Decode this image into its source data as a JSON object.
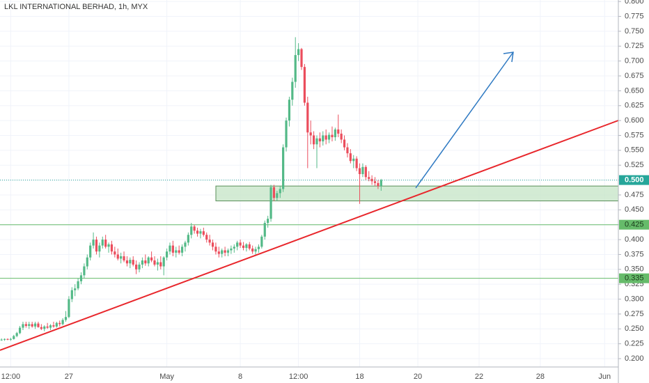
{
  "chart_data": {
    "type": "candlestick",
    "title": "LKL INTERNATIONAL BERHAD, 1h, MYX",
    "ylim": [
      0.186,
      0.8025
    ],
    "yticks": [
      {
        "value": 0.2,
        "label": "0.200"
      },
      {
        "value": 0.225,
        "label": "0.225"
      },
      {
        "value": 0.25,
        "label": "0.250"
      },
      {
        "value": 0.275,
        "label": "0.275"
      },
      {
        "value": 0.3,
        "label": "0.300"
      },
      {
        "value": 0.325,
        "label": "0.325"
      },
      {
        "value": 0.35,
        "label": "0.350"
      },
      {
        "value": 0.375,
        "label": "0.375"
      },
      {
        "value": 0.4,
        "label": "0.400"
      },
      {
        "value": 0.425,
        "label": "0.425"
      },
      {
        "value": 0.45,
        "label": "0.450"
      },
      {
        "value": 0.475,
        "label": "0.475"
      },
      {
        "value": 0.5,
        "label": "0.500"
      },
      {
        "value": 0.525,
        "label": "0.525"
      },
      {
        "value": 0.55,
        "label": "0.550"
      },
      {
        "value": 0.575,
        "label": "0.575"
      },
      {
        "value": 0.6,
        "label": "0.600"
      },
      {
        "value": 0.625,
        "label": "0.625"
      },
      {
        "value": 0.65,
        "label": "0.650"
      },
      {
        "value": 0.675,
        "label": "0.675"
      },
      {
        "value": 0.7,
        "label": "0.700"
      },
      {
        "value": 0.725,
        "label": "0.725"
      },
      {
        "value": 0.75,
        "label": "0.750"
      },
      {
        "value": 0.775,
        "label": "0.775"
      },
      {
        "value": 0.8,
        "label": "0.800"
      }
    ],
    "grid": true,
    "categories": [
      null,
      null,
      null,
      "12:00",
      null,
      null,
      null,
      null,
      null,
      null,
      null,
      null,
      null,
      null,
      null,
      null,
      null,
      null,
      null,
      null,
      null,
      null,
      "27",
      null,
      null,
      null,
      null,
      null,
      null,
      null,
      null,
      null,
      null,
      null,
      null,
      null,
      null,
      null,
      null,
      null,
      null,
      null,
      null,
      null,
      null,
      null,
      null,
      null,
      null,
      null,
      null,
      null,
      null,
      null,
      "May",
      null,
      null,
      null,
      null,
      null,
      null,
      null,
      null,
      null,
      null,
      null,
      null,
      null,
      null,
      null,
      null,
      null,
      null,
      null,
      null,
      null,
      null,
      null,
      "8",
      null,
      null,
      null,
      null,
      null,
      null,
      null,
      null,
      null,
      null,
      null,
      null,
      null,
      null,
      null,
      null,
      null,
      null,
      "12:00",
      null,
      null,
      null,
      null,
      null,
      null,
      null,
      null,
      null,
      null,
      null,
      null,
      null,
      null,
      null,
      null,
      null,
      null,
      null,
      "18",
      null,
      null,
      null,
      null,
      null,
      null,
      null,
      null,
      null,
      null,
      null,
      null,
      null,
      null,
      null,
      null,
      null,
      null,
      "20",
      null,
      null,
      null,
      null,
      null,
      null,
      null,
      null,
      null,
      null,
      null,
      null,
      null,
      null,
      null,
      null,
      null,
      null,
      null,
      "22",
      null,
      null,
      null,
      null,
      null,
      null,
      null,
      null,
      null,
      null,
      null,
      null,
      null,
      null,
      null,
      null,
      null,
      null,
      null,
      "28",
      null,
      null,
      null,
      null,
      null,
      null,
      null,
      null,
      null,
      null,
      null,
      null,
      null,
      null,
      null,
      null,
      null,
      null,
      null,
      null,
      "Jun",
      null,
      null,
      null,
      null
    ],
    "series": [
      {
        "up_color": "#53b987",
        "down_color": "#eb4d5c",
        "open": [
          0.232,
          0.232,
          0.233,
          0.232,
          0.233,
          0.238,
          0.243,
          0.252,
          0.258,
          0.255,
          0.258,
          0.254,
          0.259,
          0.253,
          0.25,
          0.254,
          0.252,
          0.256,
          0.254,
          0.26,
          0.258,
          0.265,
          0.27,
          0.3,
          0.315,
          0.318,
          0.33,
          0.34,
          0.355,
          0.37,
          0.39,
          0.4,
          0.38,
          0.39,
          0.4,
          0.388,
          0.392,
          0.38,
          0.375,
          0.368,
          0.372,
          0.365,
          0.36,
          0.366,
          0.358,
          0.35,
          0.358,
          0.365,
          0.36,
          0.37,
          0.365,
          0.358,
          0.362,
          0.355,
          0.37,
          0.38,
          0.39,
          0.378,
          0.382,
          0.378,
          0.388,
          0.395,
          0.408,
          0.422,
          0.415,
          0.41,
          0.414,
          0.408,
          0.4,
          0.395,
          0.388,
          0.38,
          0.376,
          0.382,
          0.378,
          0.382,
          0.385,
          0.388,
          0.395,
          0.39,
          0.386,
          0.392,
          0.385,
          0.38,
          0.384,
          0.388,
          0.405,
          0.428,
          0.435,
          0.488,
          0.47,
          0.478,
          0.485,
          0.555,
          0.6,
          0.635,
          0.665,
          0.71,
          0.72,
          0.69,
          0.63,
          0.58,
          0.575,
          0.56,
          0.57,
          0.565,
          0.575,
          0.568,
          0.576,
          0.572,
          0.585,
          0.578,
          0.568,
          0.555,
          0.545,
          0.532,
          0.536,
          0.52,
          0.51,
          0.522,
          0.505,
          0.502,
          0.498,
          0.495,
          0.49,
          null,
          null,
          null,
          null,
          null,
          null,
          null,
          null,
          null,
          null,
          null,
          null,
          null,
          null,
          null,
          null,
          null,
          null,
          null,
          null,
          null,
          null,
          null,
          null,
          null,
          null,
          null,
          null,
          null,
          null,
          null,
          null,
          null,
          null,
          null,
          null,
          null,
          null,
          null,
          null,
          null,
          null,
          null,
          null,
          null,
          null,
          null,
          null,
          null,
          null,
          null,
          null,
          null,
          null,
          null,
          null,
          null,
          null,
          null,
          null,
          null,
          null,
          null,
          null,
          null,
          null,
          null,
          null,
          null,
          null,
          null,
          null,
          null,
          null,
          null,
          null,
          null
        ],
        "high": [
          0.234,
          0.234,
          0.234,
          0.235,
          0.24,
          0.245,
          0.255,
          0.262,
          0.262,
          0.262,
          0.262,
          0.262,
          0.262,
          0.258,
          0.256,
          0.26,
          0.258,
          0.262,
          0.262,
          0.264,
          0.268,
          0.28,
          0.305,
          0.32,
          0.325,
          0.335,
          0.345,
          0.36,
          0.375,
          0.395,
          0.412,
          0.405,
          0.395,
          0.405,
          0.408,
          0.395,
          0.398,
          0.388,
          0.385,
          0.378,
          0.38,
          0.372,
          0.37,
          0.372,
          0.365,
          0.362,
          0.37,
          0.375,
          0.372,
          0.38,
          0.372,
          0.368,
          0.372,
          0.372,
          0.385,
          0.395,
          0.398,
          0.388,
          0.39,
          0.392,
          0.398,
          0.412,
          0.428,
          0.425,
          0.42,
          0.418,
          0.42,
          0.412,
          0.408,
          0.4,
          0.395,
          0.388,
          0.385,
          0.388,
          0.385,
          0.39,
          0.392,
          0.398,
          0.4,
          0.396,
          0.394,
          0.396,
          0.39,
          0.388,
          0.392,
          0.408,
          0.432,
          0.44,
          0.492,
          0.492,
          0.482,
          0.49,
          0.56,
          0.605,
          0.64,
          0.672,
          0.74,
          0.73,
          0.722,
          0.695,
          0.64,
          0.6,
          0.582,
          0.575,
          0.58,
          0.582,
          0.585,
          0.58,
          0.59,
          0.588,
          0.61,
          0.585,
          0.575,
          0.562,
          0.552,
          0.542,
          0.54,
          0.528,
          0.528,
          0.525,
          0.515,
          0.508,
          0.505,
          0.5,
          0.502,
          null,
          null,
          null,
          null,
          null,
          null,
          null,
          null,
          null,
          null,
          null,
          null,
          null,
          null,
          null,
          null,
          null,
          null,
          null,
          null,
          null,
          null,
          null,
          null,
          null,
          null,
          null,
          null,
          null,
          null,
          null,
          null,
          null,
          null,
          null,
          null,
          null,
          null,
          null,
          null,
          null,
          null,
          null,
          null,
          null,
          null,
          null,
          null,
          null,
          null,
          null,
          null,
          null,
          null,
          null,
          null,
          null,
          null,
          null,
          null,
          null,
          null,
          null,
          null,
          null,
          null,
          null,
          null,
          null,
          null,
          null,
          null,
          null,
          null,
          null,
          null,
          null
        ],
        "low": [
          0.23,
          0.23,
          0.231,
          0.23,
          0.232,
          0.236,
          0.241,
          0.248,
          0.252,
          0.25,
          0.252,
          0.25,
          0.252,
          0.248,
          0.246,
          0.25,
          0.248,
          0.252,
          0.252,
          0.254,
          0.256,
          0.262,
          0.268,
          0.295,
          0.305,
          0.315,
          0.325,
          0.335,
          0.35,
          0.365,
          0.385,
          0.375,
          0.37,
          0.385,
          0.385,
          0.378,
          0.375,
          0.37,
          0.365,
          0.36,
          0.362,
          0.355,
          0.352,
          0.355,
          0.342,
          0.345,
          0.352,
          0.356,
          0.355,
          0.362,
          0.355,
          0.348,
          0.35,
          0.34,
          0.365,
          0.375,
          0.372,
          0.37,
          0.375,
          0.372,
          0.38,
          0.39,
          0.402,
          0.41,
          0.405,
          0.402,
          0.405,
          0.395,
          0.39,
          0.382,
          0.375,
          0.37,
          0.37,
          0.372,
          0.372,
          0.376,
          0.378,
          0.382,
          0.386,
          0.382,
          0.38,
          0.382,
          0.376,
          0.375,
          0.378,
          0.385,
          0.4,
          0.42,
          0.43,
          0.465,
          0.465,
          0.47,
          0.48,
          0.548,
          0.59,
          0.625,
          0.655,
          0.7,
          0.685,
          0.625,
          0.52,
          0.56,
          0.552,
          0.52,
          0.555,
          0.558,
          0.56,
          0.562,
          0.565,
          0.566,
          0.572,
          0.562,
          0.55,
          0.538,
          0.528,
          0.52,
          0.515,
          0.46,
          0.505,
          0.5,
          0.498,
          0.492,
          0.49,
          0.485,
          0.482,
          null,
          null,
          null,
          null,
          null,
          null,
          null,
          null,
          null,
          null,
          null,
          null,
          null,
          null,
          null,
          null,
          null,
          null,
          null,
          null,
          null,
          null,
          null,
          null,
          null,
          null,
          null,
          null,
          null,
          null,
          null,
          null,
          null,
          null,
          null,
          null,
          null,
          null,
          null,
          null,
          null,
          null,
          null,
          null,
          null,
          null,
          null,
          null,
          null,
          null,
          null,
          null,
          null,
          null,
          null,
          null,
          null,
          null,
          null,
          null,
          null,
          null,
          null,
          null,
          null,
          null,
          null,
          null,
          null,
          null,
          null,
          null,
          null,
          null,
          null,
          null,
          null
        ],
        "close": [
          0.232,
          0.233,
          0.232,
          0.233,
          0.238,
          0.243,
          0.252,
          0.258,
          0.255,
          0.258,
          0.254,
          0.259,
          0.253,
          0.25,
          0.254,
          0.252,
          0.256,
          0.254,
          0.26,
          0.258,
          0.265,
          0.27,
          0.3,
          0.315,
          0.318,
          0.33,
          0.34,
          0.355,
          0.37,
          0.39,
          0.4,
          0.38,
          0.39,
          0.4,
          0.388,
          0.392,
          0.38,
          0.375,
          0.368,
          0.372,
          0.365,
          0.36,
          0.366,
          0.358,
          0.35,
          0.358,
          0.365,
          0.36,
          0.37,
          0.365,
          0.358,
          0.362,
          0.355,
          0.37,
          0.38,
          0.39,
          0.378,
          0.382,
          0.378,
          0.388,
          0.395,
          0.408,
          0.422,
          0.415,
          0.41,
          0.414,
          0.408,
          0.4,
          0.395,
          0.388,
          0.38,
          0.376,
          0.382,
          0.378,
          0.382,
          0.385,
          0.388,
          0.395,
          0.39,
          0.386,
          0.392,
          0.385,
          0.38,
          0.384,
          0.388,
          0.405,
          0.428,
          0.435,
          0.488,
          0.47,
          0.478,
          0.485,
          0.555,
          0.6,
          0.635,
          0.665,
          0.71,
          0.72,
          0.69,
          0.63,
          0.58,
          0.575,
          0.56,
          0.57,
          0.565,
          0.575,
          0.568,
          0.576,
          0.572,
          0.585,
          0.578,
          0.568,
          0.555,
          0.545,
          0.532,
          0.536,
          0.52,
          0.51,
          0.522,
          0.505,
          0.502,
          0.498,
          0.495,
          0.49,
          0.5,
          null,
          null,
          null,
          null,
          null,
          null,
          null,
          null,
          null,
          null,
          null,
          null,
          null,
          null,
          null,
          null,
          null,
          null,
          null,
          null,
          null,
          null,
          null,
          null,
          null,
          null,
          null,
          null,
          null,
          null,
          null,
          null,
          null,
          null,
          null,
          null,
          null,
          null,
          null,
          null,
          null,
          null,
          null,
          null,
          null,
          null,
          null,
          null,
          null,
          null,
          null,
          null,
          null,
          null,
          null,
          null,
          null,
          null,
          null,
          null,
          null,
          null,
          null,
          null,
          null,
          null,
          null,
          null,
          null,
          null,
          null,
          null,
          null,
          null,
          null,
          null,
          null
        ]
      }
    ],
    "zone": {
      "top": 0.49,
      "bottom": 0.465,
      "color": "#c8e6c9"
    },
    "levels": [
      {
        "value": 0.425,
        "label": "0.425",
        "color": "#66bb6a"
      },
      {
        "value": 0.335,
        "label": "0.335",
        "color": "#66bb6a"
      }
    ],
    "last_price": {
      "value": 0.5,
      "label": "0.500",
      "color": "#26a69a"
    }
  }
}
